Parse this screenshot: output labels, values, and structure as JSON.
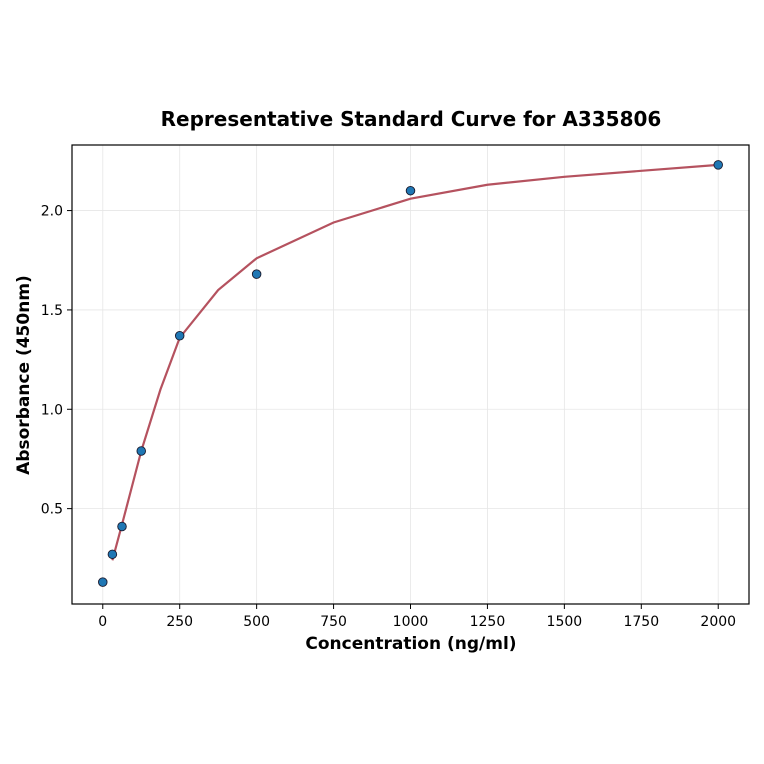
{
  "chart_data": {
    "type": "scatter",
    "title": "Representative Standard Curve for A335806",
    "x_label": "Concentration (ng/ml)",
    "y_label": "Absorbance (450nm)",
    "xlim": [
      -100,
      2100
    ],
    "ylim": [
      0.02,
      2.33
    ],
    "xticks": [
      0,
      250,
      500,
      750,
      1000,
      1250,
      1500,
      1750,
      2000
    ],
    "yticks": [
      0.5,
      {
        "value": 1,
        "label": "1.0"
      },
      1.5,
      {
        "value": 2,
        "label": "2.0"
      }
    ],
    "grid": true,
    "series": [
      {
        "kind": "line",
        "color": "#b5525f",
        "x": [
          31.25,
          62.5,
          125,
          187.5,
          250,
          375,
          500,
          750,
          1000,
          1250,
          1500,
          1750,
          2000
        ],
        "values": [
          0.24,
          0.42,
          0.79,
          1.1,
          1.36,
          1.6,
          1.76,
          1.94,
          2.06,
          2.13,
          2.17,
          2.2,
          2.23
        ]
      },
      {
        "kind": "points",
        "color": "#1f77b4",
        "x": [
          0,
          31.25,
          62.5,
          125,
          250,
          500,
          1000,
          2000
        ],
        "values": [
          0.13,
          0.27,
          0.41,
          0.79,
          1.37,
          1.68,
          2.1,
          2.23
        ]
      }
    ]
  }
}
